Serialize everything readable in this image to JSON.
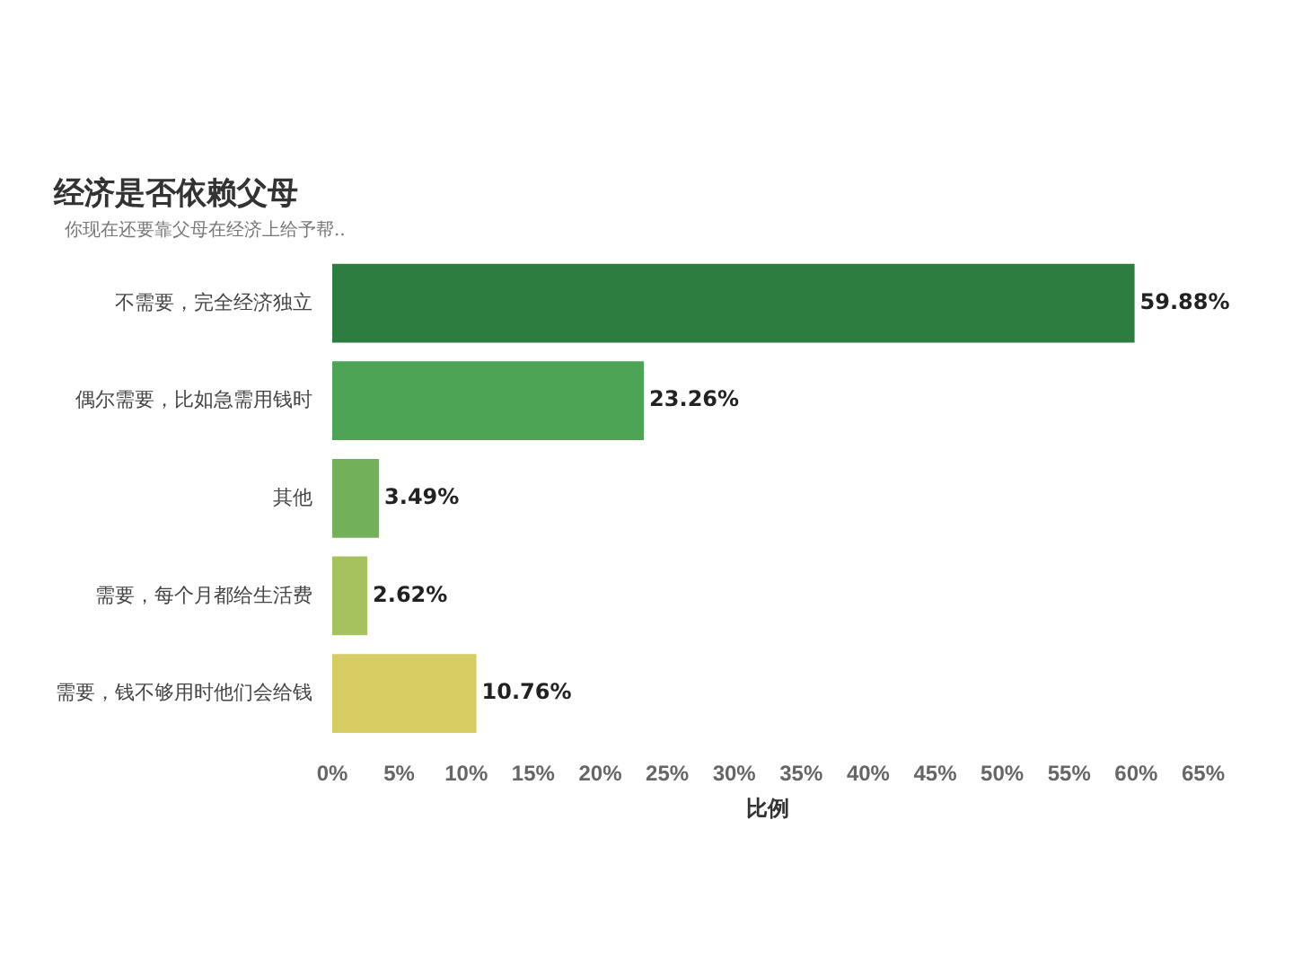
{
  "chart_data": {
    "type": "bar",
    "orientation": "horizontal",
    "title": "经济是否依赖父母",
    "subtitle": "你现在还要靠父母在经济上给予帮..",
    "xlabel": "比例",
    "categories": [
      "不需要，完全经济独立",
      "偶尔需要，比如急需用钱时",
      "其他",
      "需要，每个月都给生活费",
      "需要，钱不够用时他们会给钱"
    ],
    "values": [
      59.88,
      23.26,
      3.49,
      2.62,
      10.76
    ],
    "value_labels": [
      "59.88%",
      "23.26%",
      "3.49%",
      "2.62%",
      "10.76%"
    ],
    "colors": [
      "#2e7d40",
      "#4ea455",
      "#72b05a",
      "#a5c25e",
      "#d6cd62"
    ],
    "xlim": [
      0,
      65
    ],
    "xticks": [
      {
        "value": 0,
        "label": "0%"
      },
      {
        "value": 5,
        "label": "5%"
      },
      {
        "value": 10,
        "label": "10%"
      },
      {
        "value": 15,
        "label": "15%"
      },
      {
        "value": 20,
        "label": "20%"
      },
      {
        "value": 25,
        "label": "25%"
      },
      {
        "value": 30,
        "label": "30%"
      },
      {
        "value": 35,
        "label": "35%"
      },
      {
        "value": 40,
        "label": "40%"
      },
      {
        "value": 45,
        "label": "45%"
      },
      {
        "value": 50,
        "label": "50%"
      },
      {
        "value": 55,
        "label": "55%"
      },
      {
        "value": 60,
        "label": "60%"
      },
      {
        "value": 65,
        "label": "65%"
      }
    ]
  }
}
